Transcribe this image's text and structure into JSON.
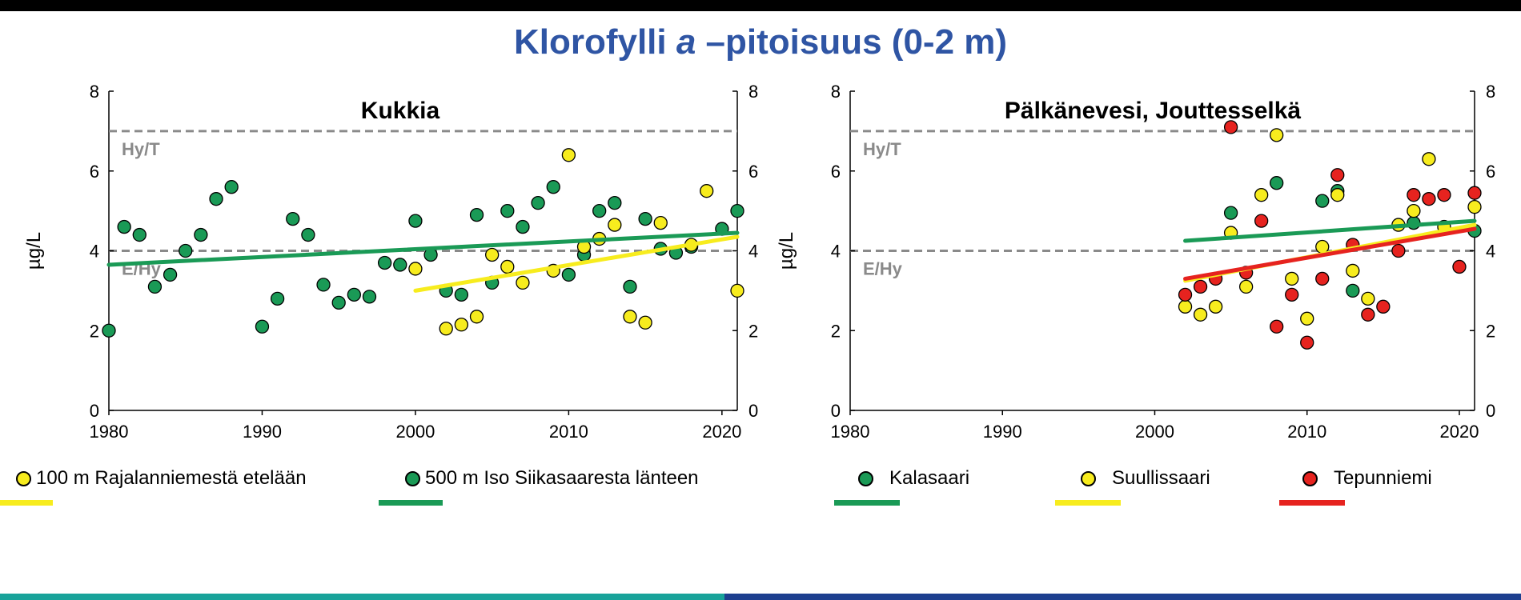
{
  "title": {
    "prefix": "Klorofylli ",
    "italic": "a",
    "suffix": " –pitoisuus (0-2 m)"
  },
  "colors": {
    "title": "#2f55a4",
    "green": "#1a9a56",
    "yellow": "#f7ec1e",
    "red": "#e6231f",
    "ref": "#8a8a8a"
  },
  "chart_data": [
    {
      "type": "scatter",
      "title": "Kukkia",
      "ylabel": "µg/L",
      "xlim": [
        1980,
        2021
      ],
      "ylim": [
        0,
        8
      ],
      "xticks": [
        1980,
        1990,
        2000,
        2010,
        2020
      ],
      "yticks": [
        0,
        2,
        4,
        6,
        8
      ],
      "reference_lines": [
        {
          "y": 7,
          "label": "Hy/T"
        },
        {
          "y": 4,
          "label": "E/Hy"
        }
      ],
      "series": [
        {
          "name": "500 m Iso Siikasaaresta länteen",
          "color": "#1a9a56",
          "points": [
            [
              1980,
              2.0
            ],
            [
              1981,
              4.6
            ],
            [
              1982,
              4.4
            ],
            [
              1983,
              3.1
            ],
            [
              1984,
              3.4
            ],
            [
              1985,
              4.0
            ],
            [
              1986,
              4.4
            ],
            [
              1987,
              5.3
            ],
            [
              1988,
              5.6
            ],
            [
              1990,
              2.1
            ],
            [
              1991,
              2.8
            ],
            [
              1992,
              4.8
            ],
            [
              1993,
              4.4
            ],
            [
              1994,
              3.15
            ],
            [
              1995,
              2.7
            ],
            [
              1996,
              2.9
            ],
            [
              1997,
              2.85
            ],
            [
              1998,
              3.7
            ],
            [
              1999,
              3.65
            ],
            [
              2000,
              4.75
            ],
            [
              2001,
              3.9
            ],
            [
              2002,
              3.0
            ],
            [
              2003,
              2.9
            ],
            [
              2004,
              4.9
            ],
            [
              2005,
              3.2
            ],
            [
              2006,
              5.0
            ],
            [
              2007,
              4.6
            ],
            [
              2008,
              5.2
            ],
            [
              2009,
              5.6
            ],
            [
              2010,
              3.4
            ],
            [
              2011,
              3.9
            ],
            [
              2012,
              5.0
            ],
            [
              2013,
              5.2
            ],
            [
              2014,
              3.1
            ],
            [
              2015,
              4.8
            ],
            [
              2016,
              4.05
            ],
            [
              2017,
              3.95
            ],
            [
              2018,
              4.1
            ],
            [
              2020,
              4.55
            ],
            [
              2021,
              5.0
            ]
          ],
          "trend": [
            [
              1980,
              3.65
            ],
            [
              2021,
              4.45
            ]
          ]
        },
        {
          "name": "100 m Rajalanniemestä etelään",
          "color": "#f7ec1e",
          "points": [
            [
              2000,
              3.55
            ],
            [
              2002,
              2.05
            ],
            [
              2003,
              2.15
            ],
            [
              2004,
              2.35
            ],
            [
              2005,
              3.9
            ],
            [
              2006,
              3.6
            ],
            [
              2007,
              3.2
            ],
            [
              2009,
              3.5
            ],
            [
              2010,
              6.4
            ],
            [
              2011,
              4.1
            ],
            [
              2012,
              4.3
            ],
            [
              2013,
              4.65
            ],
            [
              2014,
              2.35
            ],
            [
              2015,
              2.2
            ],
            [
              2016,
              4.7
            ],
            [
              2018,
              4.15
            ],
            [
              2019,
              5.5
            ],
            [
              2021,
              3.0
            ]
          ],
          "trend": [
            [
              2000,
              3.0
            ],
            [
              2021,
              4.35
            ]
          ]
        }
      ]
    },
    {
      "type": "scatter",
      "title": "Pälkänevesi, Jouttesselkä",
      "ylabel": "µg/L",
      "xlim": [
        1980,
        2021
      ],
      "ylim": [
        0,
        8
      ],
      "xticks": [
        1980,
        1990,
        2000,
        2010,
        2020
      ],
      "yticks": [
        0,
        2,
        4,
        6,
        8
      ],
      "reference_lines": [
        {
          "y": 7,
          "label": "Hy/T"
        },
        {
          "y": 4,
          "label": "E/Hy"
        }
      ],
      "series": [
        {
          "name": "Kalasaari",
          "color": "#1a9a56",
          "points": [
            [
              2005,
              4.95
            ],
            [
              2008,
              5.7
            ],
            [
              2011,
              5.25
            ],
            [
              2012,
              5.5
            ],
            [
              2013,
              3.0
            ],
            [
              2017,
              4.7
            ],
            [
              2021,
              4.5
            ]
          ],
          "trend": [
            [
              2002,
              4.25
            ],
            [
              2021,
              4.75
            ]
          ]
        },
        {
          "name": "Suullissaari",
          "color": "#f7ec1e",
          "points": [
            [
              2002,
              2.6
            ],
            [
              2003,
              2.4
            ],
            [
              2004,
              2.6
            ],
            [
              2005,
              4.45
            ],
            [
              2006,
              3.1
            ],
            [
              2007,
              5.4
            ],
            [
              2008,
              6.9
            ],
            [
              2009,
              3.3
            ],
            [
              2010,
              2.3
            ],
            [
              2011,
              4.1
            ],
            [
              2012,
              5.4
            ],
            [
              2013,
              3.5
            ],
            [
              2014,
              2.8
            ],
            [
              2016,
              4.65
            ],
            [
              2017,
              5.0
            ],
            [
              2018,
              6.3
            ],
            [
              2019,
              4.6
            ],
            [
              2021,
              5.1
            ]
          ],
          "trend": [
            [
              2002,
              3.25
            ],
            [
              2021,
              4.65
            ]
          ]
        },
        {
          "name": "Tepunniemi",
          "color": "#e6231f",
          "points": [
            [
              2002,
              2.9
            ],
            [
              2003,
              3.1
            ],
            [
              2004,
              3.3
            ],
            [
              2005,
              7.1
            ],
            [
              2006,
              3.45
            ],
            [
              2007,
              4.75
            ],
            [
              2008,
              2.1
            ],
            [
              2009,
              2.9
            ],
            [
              2010,
              1.7
            ],
            [
              2011,
              3.3
            ],
            [
              2012,
              5.9
            ],
            [
              2013,
              4.15
            ],
            [
              2014,
              2.4
            ],
            [
              2015,
              2.6
            ],
            [
              2016,
              4.0
            ],
            [
              2017,
              5.4
            ],
            [
              2018,
              5.3
            ],
            [
              2019,
              5.4
            ],
            [
              2020,
              3.6
            ],
            [
              2021,
              5.45
            ]
          ],
          "trend": [
            [
              2002,
              3.3
            ],
            [
              2021,
              4.55
            ]
          ]
        }
      ]
    }
  ],
  "legend_left": [
    {
      "label": "100 m Rajalanniemestä etelään",
      "color": "#f7ec1e"
    },
    {
      "label": "500 m Iso Siikasaaresta länteen",
      "color": "#1a9a56"
    }
  ],
  "legend_right": [
    {
      "label": "Kalasaari",
      "color": "#1a9a56"
    },
    {
      "label": "Suullissaari",
      "color": "#f7ec1e"
    },
    {
      "label": "Tepunniemi",
      "color": "#e6231f"
    }
  ]
}
